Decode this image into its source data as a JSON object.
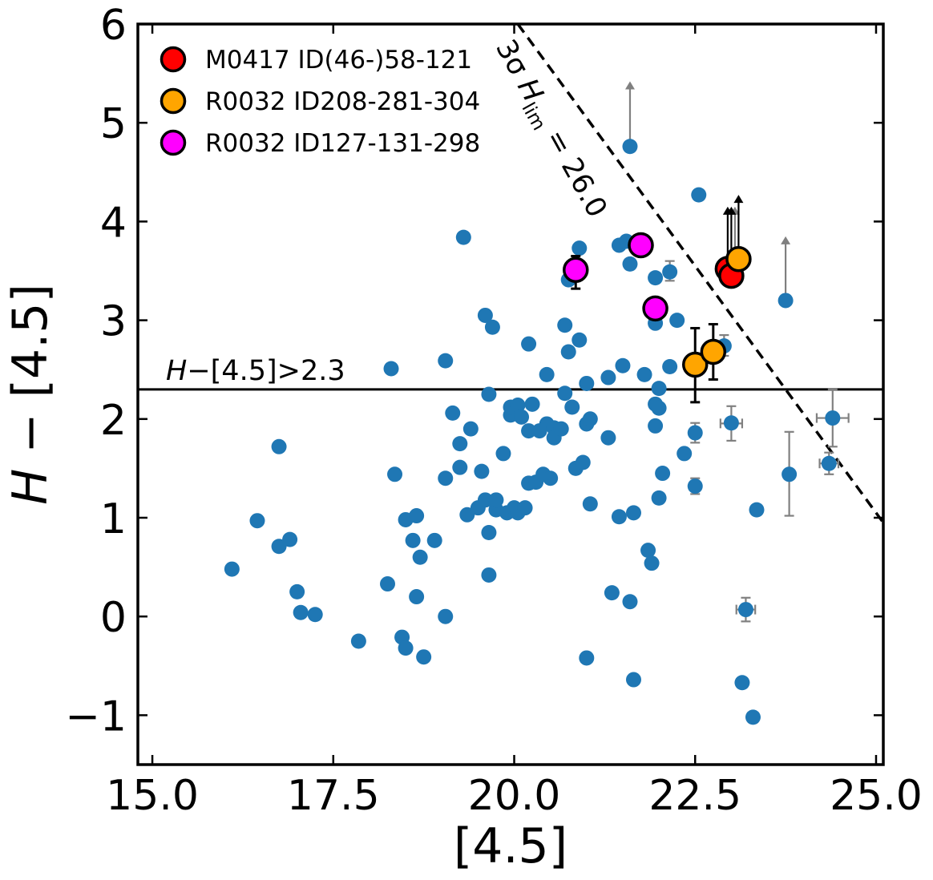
{
  "chart_data": {
    "type": "scatter",
    "title": "",
    "xlabel": "[4.5]",
    "ylabel": "H − [4.5]",
    "xlim": [
      14.8,
      25.1
    ],
    "ylim": [
      -1.5,
      6.0
    ],
    "xticks": [
      15.0,
      17.5,
      20.0,
      22.5,
      25.0
    ],
    "xtick_labels": [
      "15.0",
      "17.5",
      "20.0",
      "22.5",
      "25.0"
    ],
    "yticks": [
      -1,
      0,
      1,
      2,
      3,
      4,
      5,
      6
    ],
    "ytick_labels": [
      "−1",
      "0",
      "1",
      "2",
      "3",
      "4",
      "5",
      "6"
    ],
    "grid": false,
    "legend_position": "top-left",
    "background_points": {
      "color": "#1f77b4",
      "points": [
        [
          16.1,
          0.48
        ],
        [
          16.45,
          0.97
        ],
        [
          16.75,
          1.72
        ],
        [
          16.75,
          0.71
        ],
        [
          16.9,
          0.78
        ],
        [
          17.0,
          0.25
        ],
        [
          17.05,
          0.04
        ],
        [
          17.25,
          0.02
        ],
        [
          17.85,
          -0.25
        ],
        [
          18.25,
          0.33
        ],
        [
          18.3,
          2.51
        ],
        [
          18.35,
          1.44
        ],
        [
          18.45,
          -0.21
        ],
        [
          18.5,
          -0.32
        ],
        [
          18.5,
          0.98
        ],
        [
          18.6,
          0.77
        ],
        [
          18.65,
          1.02
        ],
        [
          18.65,
          0.2
        ],
        [
          18.7,
          0.6
        ],
        [
          18.75,
          -0.41
        ],
        [
          18.9,
          0.77
        ],
        [
          19.05,
          1.4
        ],
        [
          19.05,
          2.59
        ],
        [
          19.05,
          0.0
        ],
        [
          19.15,
          2.06
        ],
        [
          19.25,
          1.75
        ],
        [
          19.25,
          1.51
        ],
        [
          19.3,
          3.84
        ],
        [
          19.35,
          1.03
        ],
        [
          19.4,
          1.9
        ],
        [
          19.5,
          1.1
        ],
        [
          19.55,
          1.47
        ],
        [
          19.6,
          3.05
        ],
        [
          19.6,
          1.18
        ],
        [
          19.65,
          2.25
        ],
        [
          19.65,
          0.85
        ],
        [
          19.65,
          0.42
        ],
        [
          19.7,
          2.93
        ],
        [
          19.75,
          1.08
        ],
        [
          19.75,
          1.18
        ],
        [
          19.85,
          1.65
        ],
        [
          19.9,
          1.05
        ],
        [
          19.95,
          2.04
        ],
        [
          19.95,
          2.12
        ],
        [
          20.0,
          1.1
        ],
        [
          20.05,
          2.14
        ],
        [
          20.05,
          1.05
        ],
        [
          20.1,
          2.02
        ],
        [
          20.15,
          1.1
        ],
        [
          20.2,
          2.76
        ],
        [
          20.2,
          1.88
        ],
        [
          20.2,
          1.35
        ],
        [
          20.25,
          2.15
        ],
        [
          20.3,
          1.36
        ],
        [
          20.35,
          1.88
        ],
        [
          20.4,
          1.44
        ],
        [
          20.45,
          2.45
        ],
        [
          20.45,
          1.95
        ],
        [
          20.5,
          1.4
        ],
        [
          20.55,
          1.91
        ],
        [
          20.55,
          1.81
        ],
        [
          20.65,
          1.9
        ],
        [
          20.7,
          2.95
        ],
        [
          20.75,
          2.68
        ],
        [
          20.7,
          2.26
        ],
        [
          20.75,
          3.41
        ],
        [
          20.8,
          2.12
        ],
        [
          20.85,
          1.5
        ],
        [
          20.9,
          3.73
        ],
        [
          20.9,
          2.8
        ],
        [
          20.95,
          1.56
        ],
        [
          21.0,
          2.36
        ],
        [
          21.0,
          1.95
        ],
        [
          21.05,
          2.0
        ],
        [
          21.05,
          1.14
        ],
        [
          21.0,
          -0.42
        ],
        [
          21.3,
          2.42
        ],
        [
          21.3,
          1.81
        ],
        [
          21.35,
          0.24
        ],
        [
          21.45,
          3.76
        ],
        [
          21.45,
          1.01
        ],
        [
          21.5,
          2.54
        ],
        [
          21.55,
          3.8
        ],
        [
          21.6,
          3.57
        ],
        [
          21.6,
          0.15
        ],
        [
          21.6,
          4.76
        ],
        [
          21.65,
          1.05
        ],
        [
          21.65,
          -0.64
        ],
        [
          21.8,
          2.45
        ],
        [
          21.85,
          0.67
        ],
        [
          21.9,
          0.54
        ],
        [
          21.95,
          3.43
        ],
        [
          21.95,
          2.97
        ],
        [
          21.95,
          2.15
        ],
        [
          21.95,
          1.93
        ],
        [
          22.0,
          2.31
        ],
        [
          22.0,
          2.11
        ],
        [
          22.0,
          1.2
        ],
        [
          22.05,
          1.45
        ],
        [
          22.15,
          3.49
        ],
        [
          22.15,
          2.53
        ],
        [
          22.25,
          3.0
        ],
        [
          22.35,
          1.65
        ],
        [
          22.5,
          1.86
        ],
        [
          22.5,
          1.32
        ],
        [
          22.55,
          4.27
        ],
        [
          22.9,
          2.74
        ],
        [
          23.0,
          1.96
        ],
        [
          23.05,
          3.55
        ],
        [
          23.2,
          0.07
        ],
        [
          23.15,
          -0.67
        ],
        [
          23.3,
          -1.02
        ],
        [
          23.35,
          1.08
        ],
        [
          23.75,
          3.2
        ],
        [
          23.8,
          1.44
        ],
        [
          24.35,
          1.55
        ],
        [
          24.4,
          2.01
        ]
      ],
      "error_bars": [
        {
          "x": 21.6,
          "y_low": 4.76,
          "y_high": 5.42,
          "type": "upper-limit-arrow"
        },
        {
          "x": 23.05,
          "y_low": 3.55,
          "y_high": 4.15,
          "type": "upper-limit-arrow"
        },
        {
          "x": 23.75,
          "y_low": 3.2,
          "y_high": 3.85,
          "type": "upper-limit-arrow"
        },
        {
          "x": 22.15,
          "y_low": 3.4,
          "y_high": 3.6,
          "type": "error"
        },
        {
          "x": 22.5,
          "y_low": 1.76,
          "y_high": 1.96,
          "type": "error"
        },
        {
          "x": 22.5,
          "y_low": 1.24,
          "y_high": 1.4,
          "type": "error"
        },
        {
          "x": 22.9,
          "y_low": 2.64,
          "y_high": 2.85,
          "type": "error"
        },
        {
          "x": 23.0,
          "y_low": 1.78,
          "y_high": 2.13,
          "type": "error",
          "x_low": 22.85,
          "x_high": 23.15
        },
        {
          "x": 23.2,
          "y_low": -0.05,
          "y_high": 0.19,
          "type": "error",
          "x_low": 23.07,
          "x_high": 23.33
        },
        {
          "x": 23.8,
          "y_low": 1.02,
          "y_high": 1.87,
          "type": "error"
        },
        {
          "x": 24.35,
          "y_low": 1.44,
          "y_high": 1.66,
          "type": "error",
          "x_low": 24.22,
          "x_high": 24.48
        },
        {
          "x": 24.4,
          "y_low": 1.72,
          "y_high": 2.3,
          "type": "error",
          "x_low": 24.18,
          "x_high": 24.62
        }
      ]
    },
    "series": [
      {
        "name": "M0417 ID(46-)58-121",
        "color": "#ff0000",
        "points": [
          [
            22.95,
            3.52
          ],
          [
            23.0,
            3.45
          ]
        ],
        "upper_limits": [
          [
            22.95,
            3.52,
            4.15
          ],
          [
            23.0,
            3.45,
            4.15
          ]
        ]
      },
      {
        "name": "R0032 ID208-281-304",
        "color": "#ffa500",
        "points": [
          [
            23.1,
            3.62
          ],
          [
            22.5,
            2.55
          ],
          [
            22.75,
            2.68
          ]
        ],
        "upper_limits": [
          [
            23.1,
            3.62,
            4.27
          ]
        ],
        "errors": [
          [
            22.5,
            2.55,
            2.17,
            2.92
          ],
          [
            22.75,
            2.68,
            2.4,
            2.96
          ]
        ]
      },
      {
        "name": "R0032 ID127-131-298",
        "color": "#ff00ff",
        "points": [
          [
            20.85,
            3.51
          ],
          [
            21.75,
            3.76
          ],
          [
            21.95,
            3.12
          ]
        ],
        "errors": [
          [
            20.85,
            3.51,
            3.32,
            3.65
          ],
          [
            21.95,
            3.12,
            3.02,
            3.22
          ]
        ]
      }
    ],
    "reference_lines": [
      {
        "type": "horizontal",
        "y": 2.3,
        "style": "solid",
        "label": "H−[4.5]>2.3"
      },
      {
        "type": "diagonal",
        "points": [
          [
            20.05,
            6.0
          ],
          [
            25.1,
            0.95
          ]
        ],
        "style": "dashed",
        "label": "3σ H_lim = 26.0"
      }
    ],
    "annotations": {
      "hline_label_italic": "H",
      "hline_label_rest": "−[4.5]>2.3",
      "diag_label_prefix": "3σ ",
      "diag_label_italic": "H",
      "diag_label_sub": "lim",
      "diag_label_suffix": " = 26.0"
    }
  },
  "ylabel_italic": "H",
  "ylabel_rest": " − [4.5]"
}
